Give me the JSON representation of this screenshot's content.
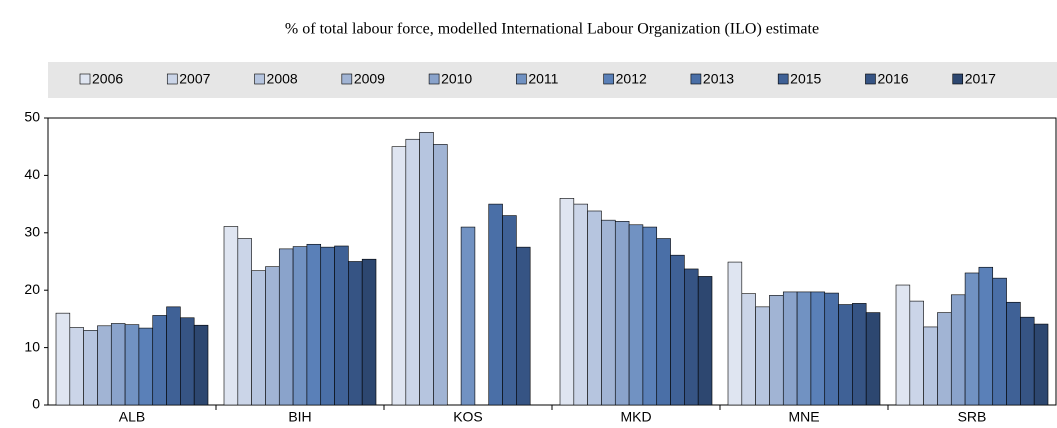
{
  "chart_data": {
    "type": "bar",
    "subtitle": "% of total labour force, modelled International Labour Organization (ILO) estimate",
    "categories": [
      "ALB",
      "BIH",
      "KOS",
      "MKD",
      "MNE",
      "SRB"
    ],
    "series": [
      {
        "name": "2006",
        "color": "#dfe5f1",
        "values": [
          16,
          31.1,
          45,
          36,
          24.9,
          20.9
        ]
      },
      {
        "name": "2007",
        "color": "#cbd5e8",
        "values": [
          13.5,
          29,
          46.3,
          35,
          19.4,
          18.1
        ]
      },
      {
        "name": "2008",
        "color": "#b6c5df",
        "values": [
          13,
          23.4,
          47.5,
          33.8,
          17.1,
          13.6
        ]
      },
      {
        "name": "2009",
        "color": "#a1b4d4",
        "values": [
          13.8,
          24.1,
          45.4,
          32.2,
          19.1,
          16.1
        ]
      },
      {
        "name": "2010",
        "color": "#8aa3cb",
        "values": [
          14.2,
          27.2,
          null,
          32,
          19.7,
          19.2
        ]
      },
      {
        "name": "2011",
        "color": "#7192c2",
        "values": [
          14,
          27.6,
          31,
          31.4,
          19.7,
          23
        ]
      },
      {
        "name": "2012",
        "color": "#5a80b8",
        "values": [
          13.4,
          28,
          null,
          31,
          19.7,
          24
        ]
      },
      {
        "name": "2013",
        "color": "#4a6fa7",
        "values": [
          15.6,
          27.5,
          35,
          29,
          19.5,
          22.1
        ]
      },
      {
        "name": "2015",
        "color": "#3f6196",
        "values": [
          17.1,
          27.7,
          33,
          26.1,
          17.5,
          17.9
        ]
      },
      {
        "name": "2016",
        "color": "#365484",
        "values": [
          15.2,
          25,
          27.5,
          23.7,
          17.7,
          15.3
        ]
      },
      {
        "name": "2017",
        "color": "#2d4770",
        "values": [
          13.9,
          25.4,
          null,
          22.4,
          16.1,
          14.1
        ]
      }
    ],
    "ylim": [
      0,
      50
    ],
    "yticks": [
      0,
      10,
      20,
      30,
      40,
      50
    ],
    "grid": false
  }
}
